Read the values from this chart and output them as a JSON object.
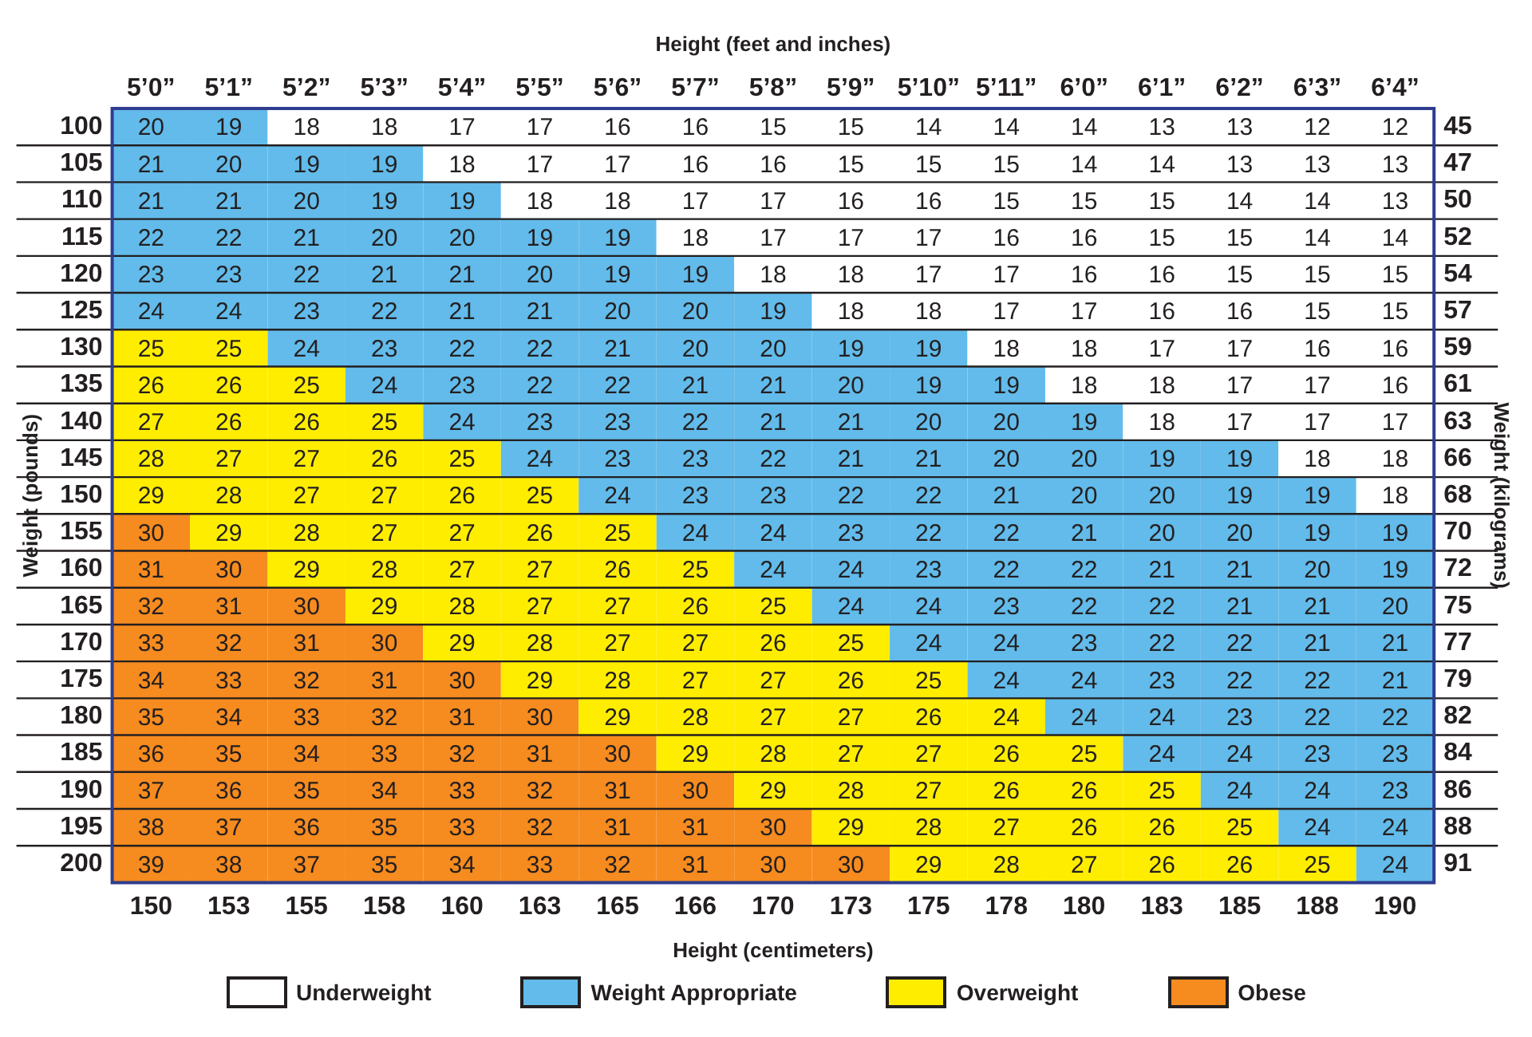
{
  "chart_data": {
    "type": "heatmap",
    "xlabel": "Height (centimeters)",
    "x2label": "Height (feet and inches)",
    "ylabel": "Weight (pounds)",
    "y2label": "Weight (kilograms)",
    "categories": [
      "150",
      "153",
      "155",
      "158",
      "160",
      "163",
      "165",
      "166",
      "170",
      "173",
      "175",
      "178",
      "180",
      "183",
      "185",
      "188",
      "190"
    ],
    "annotations": [
      "5’0”",
      "5’1”",
      "5’2”",
      "5’3”",
      "5’4”",
      "5’5”",
      "5’6”",
      "5’7”",
      "5’8”",
      "5’9”",
      "5’10”",
      "5’11”",
      "6’0”",
      "6’1”",
      "6’2”",
      "6’3”",
      "6’4”"
    ],
    "y_categories": [
      "100",
      "105",
      "110",
      "115",
      "120",
      "125",
      "130",
      "135",
      "140",
      "145",
      "150",
      "155",
      "160",
      "165",
      "170",
      "175",
      "180",
      "185",
      "190",
      "195",
      "200"
    ],
    "y2_categories": [
      "45",
      "47",
      "50",
      "52",
      "54",
      "57",
      "59",
      "61",
      "63",
      "66",
      "68",
      "70",
      "72",
      "75",
      "77",
      "79",
      "82",
      "84",
      "86",
      "88",
      "91"
    ],
    "cells": [
      [
        20,
        19,
        18,
        18,
        17,
        17,
        16,
        16,
        15,
        15,
        14,
        14,
        14,
        13,
        13,
        12,
        12
      ],
      [
        21,
        20,
        19,
        19,
        18,
        17,
        17,
        16,
        16,
        15,
        15,
        15,
        14,
        14,
        13,
        13,
        13
      ],
      [
        21,
        21,
        20,
        19,
        19,
        18,
        18,
        17,
        17,
        16,
        16,
        15,
        15,
        15,
        14,
        14,
        13
      ],
      [
        22,
        22,
        21,
        20,
        20,
        19,
        19,
        18,
        17,
        17,
        17,
        16,
        16,
        15,
        15,
        14,
        14
      ],
      [
        23,
        23,
        22,
        21,
        21,
        20,
        19,
        19,
        18,
        18,
        17,
        17,
        16,
        16,
        15,
        15,
        15
      ],
      [
        24,
        24,
        23,
        22,
        21,
        21,
        20,
        20,
        19,
        18,
        18,
        17,
        17,
        16,
        16,
        15,
        15
      ],
      [
        25,
        25,
        24,
        23,
        22,
        22,
        21,
        20,
        20,
        19,
        19,
        18,
        18,
        17,
        17,
        16,
        16
      ],
      [
        26,
        26,
        25,
        24,
        23,
        22,
        22,
        21,
        21,
        20,
        19,
        19,
        18,
        18,
        17,
        17,
        16
      ],
      [
        27,
        26,
        26,
        25,
        24,
        23,
        23,
        22,
        21,
        21,
        20,
        20,
        19,
        18,
        17,
        17,
        17
      ],
      [
        28,
        27,
        27,
        26,
        25,
        24,
        23,
        23,
        22,
        21,
        21,
        20,
        20,
        19,
        19,
        18,
        18
      ],
      [
        29,
        28,
        27,
        27,
        26,
        25,
        24,
        23,
        23,
        22,
        22,
        21,
        20,
        20,
        19,
        19,
        18
      ],
      [
        30,
        29,
        28,
        27,
        27,
        26,
        25,
        24,
        24,
        23,
        22,
        22,
        21,
        20,
        20,
        19,
        19
      ],
      [
        31,
        30,
        29,
        28,
        27,
        27,
        26,
        25,
        24,
        24,
        23,
        22,
        22,
        21,
        21,
        20,
        19
      ],
      [
        32,
        31,
        30,
        29,
        28,
        27,
        27,
        26,
        25,
        24,
        24,
        23,
        22,
        22,
        21,
        21,
        20
      ],
      [
        33,
        32,
        31,
        30,
        29,
        28,
        27,
        27,
        26,
        25,
        24,
        24,
        23,
        22,
        22,
        21,
        21
      ],
      [
        34,
        33,
        32,
        31,
        30,
        29,
        28,
        27,
        27,
        26,
        25,
        24,
        24,
        23,
        22,
        22,
        21
      ],
      [
        35,
        34,
        33,
        32,
        31,
        30,
        29,
        28,
        27,
        27,
        26,
        24,
        24,
        24,
        23,
        22,
        22
      ],
      [
        36,
        35,
        34,
        33,
        32,
        31,
        30,
        29,
        28,
        27,
        27,
        26,
        25,
        24,
        24,
        23,
        23
      ],
      [
        37,
        36,
        35,
        34,
        33,
        32,
        31,
        30,
        29,
        28,
        27,
        26,
        26,
        25,
        24,
        24,
        23
      ],
      [
        38,
        37,
        36,
        35,
        33,
        32,
        31,
        31,
        30,
        29,
        28,
        27,
        26,
        26,
        25,
        24,
        24
      ],
      [
        39,
        38,
        37,
        35,
        34,
        33,
        32,
        31,
        30,
        30,
        29,
        28,
        27,
        26,
        26,
        25,
        24
      ]
    ],
    "colors": [
      [
        "#62bbea",
        "#62bbea",
        "#ffffff",
        "#ffffff",
        "#ffffff",
        "#ffffff",
        "#ffffff",
        "#ffffff",
        "#ffffff",
        "#ffffff",
        "#ffffff",
        "#ffffff",
        "#ffffff",
        "#ffffff",
        "#ffffff",
        "#ffffff",
        "#ffffff"
      ],
      [
        "#62bbea",
        "#62bbea",
        "#62bbea",
        "#62bbea",
        "#ffffff",
        "#ffffff",
        "#ffffff",
        "#ffffff",
        "#ffffff",
        "#ffffff",
        "#ffffff",
        "#ffffff",
        "#ffffff",
        "#ffffff",
        "#ffffff",
        "#ffffff",
        "#ffffff"
      ],
      [
        "#62bbea",
        "#62bbea",
        "#62bbea",
        "#62bbea",
        "#62bbea",
        "#ffffff",
        "#ffffff",
        "#ffffff",
        "#ffffff",
        "#ffffff",
        "#ffffff",
        "#ffffff",
        "#ffffff",
        "#ffffff",
        "#ffffff",
        "#ffffff",
        "#ffffff"
      ],
      [
        "#62bbea",
        "#62bbea",
        "#62bbea",
        "#62bbea",
        "#62bbea",
        "#62bbea",
        "#62bbea",
        "#ffffff",
        "#ffffff",
        "#ffffff",
        "#ffffff",
        "#ffffff",
        "#ffffff",
        "#ffffff",
        "#ffffff",
        "#ffffff",
        "#ffffff"
      ],
      [
        "#62bbea",
        "#62bbea",
        "#62bbea",
        "#62bbea",
        "#62bbea",
        "#62bbea",
        "#62bbea",
        "#62bbea",
        "#ffffff",
        "#ffffff",
        "#ffffff",
        "#ffffff",
        "#ffffff",
        "#ffffff",
        "#ffffff",
        "#ffffff",
        "#ffffff"
      ],
      [
        "#62bbea",
        "#62bbea",
        "#62bbea",
        "#62bbea",
        "#62bbea",
        "#62bbea",
        "#62bbea",
        "#62bbea",
        "#62bbea",
        "#ffffff",
        "#ffffff",
        "#ffffff",
        "#ffffff",
        "#ffffff",
        "#ffffff",
        "#ffffff",
        "#ffffff"
      ],
      [
        "#ffed00",
        "#ffed00",
        "#62bbea",
        "#62bbea",
        "#62bbea",
        "#62bbea",
        "#62bbea",
        "#62bbea",
        "#62bbea",
        "#62bbea",
        "#62bbea",
        "#ffffff",
        "#ffffff",
        "#ffffff",
        "#ffffff",
        "#ffffff",
        "#ffffff"
      ],
      [
        "#ffed00",
        "#ffed00",
        "#ffed00",
        "#62bbea",
        "#62bbea",
        "#62bbea",
        "#62bbea",
        "#62bbea",
        "#62bbea",
        "#62bbea",
        "#62bbea",
        "#62bbea",
        "#ffffff",
        "#ffffff",
        "#ffffff",
        "#ffffff",
        "#ffffff"
      ],
      [
        "#ffed00",
        "#ffed00",
        "#ffed00",
        "#ffed00",
        "#62bbea",
        "#62bbea",
        "#62bbea",
        "#62bbea",
        "#62bbea",
        "#62bbea",
        "#62bbea",
        "#62bbea",
        "#62bbea",
        "#ffffff",
        "#ffffff",
        "#ffffff",
        "#ffffff"
      ],
      [
        "#ffed00",
        "#ffed00",
        "#ffed00",
        "#ffed00",
        "#ffed00",
        "#62bbea",
        "#62bbea",
        "#62bbea",
        "#62bbea",
        "#62bbea",
        "#62bbea",
        "#62bbea",
        "#62bbea",
        "#62bbea",
        "#62bbea",
        "#ffffff",
        "#ffffff"
      ],
      [
        "#ffed00",
        "#ffed00",
        "#ffed00",
        "#ffed00",
        "#ffed00",
        "#ffed00",
        "#62bbea",
        "#62bbea",
        "#62bbea",
        "#62bbea",
        "#62bbea",
        "#62bbea",
        "#62bbea",
        "#62bbea",
        "#62bbea",
        "#62bbea",
        "#ffffff"
      ],
      [
        "#f68b1f",
        "#ffed00",
        "#ffed00",
        "#ffed00",
        "#ffed00",
        "#ffed00",
        "#ffed00",
        "#62bbea",
        "#62bbea",
        "#62bbea",
        "#62bbea",
        "#62bbea",
        "#62bbea",
        "#62bbea",
        "#62bbea",
        "#62bbea",
        "#62bbea"
      ],
      [
        "#f68b1f",
        "#f68b1f",
        "#ffed00",
        "#ffed00",
        "#ffed00",
        "#ffed00",
        "#ffed00",
        "#ffed00",
        "#62bbea",
        "#62bbea",
        "#62bbea",
        "#62bbea",
        "#62bbea",
        "#62bbea",
        "#62bbea",
        "#62bbea",
        "#62bbea"
      ],
      [
        "#f68b1f",
        "#f68b1f",
        "#f68b1f",
        "#ffed00",
        "#ffed00",
        "#ffed00",
        "#ffed00",
        "#ffed00",
        "#ffed00",
        "#62bbea",
        "#62bbea",
        "#62bbea",
        "#62bbea",
        "#62bbea",
        "#62bbea",
        "#62bbea",
        "#62bbea"
      ],
      [
        "#f68b1f",
        "#f68b1f",
        "#f68b1f",
        "#f68b1f",
        "#ffed00",
        "#ffed00",
        "#ffed00",
        "#ffed00",
        "#ffed00",
        "#ffed00",
        "#62bbea",
        "#62bbea",
        "#62bbea",
        "#62bbea",
        "#62bbea",
        "#62bbea",
        "#62bbea"
      ],
      [
        "#f68b1f",
        "#f68b1f",
        "#f68b1f",
        "#f68b1f",
        "#f68b1f",
        "#ffed00",
        "#ffed00",
        "#ffed00",
        "#ffed00",
        "#ffed00",
        "#ffed00",
        "#62bbea",
        "#62bbea",
        "#62bbea",
        "#62bbea",
        "#62bbea",
        "#62bbea"
      ],
      [
        "#f68b1f",
        "#f68b1f",
        "#f68b1f",
        "#f68b1f",
        "#f68b1f",
        "#f68b1f",
        "#ffed00",
        "#ffed00",
        "#ffed00",
        "#ffed00",
        "#ffed00",
        "#ffed00",
        "#62bbea",
        "#62bbea",
        "#62bbea",
        "#62bbea",
        "#62bbea"
      ],
      [
        "#f68b1f",
        "#f68b1f",
        "#f68b1f",
        "#f68b1f",
        "#f68b1f",
        "#f68b1f",
        "#f68b1f",
        "#ffed00",
        "#ffed00",
        "#ffed00",
        "#ffed00",
        "#ffed00",
        "#ffed00",
        "#62bbea",
        "#62bbea",
        "#62bbea",
        "#62bbea"
      ],
      [
        "#f68b1f",
        "#f68b1f",
        "#f68b1f",
        "#f68b1f",
        "#f68b1f",
        "#f68b1f",
        "#f68b1f",
        "#f68b1f",
        "#ffed00",
        "#ffed00",
        "#ffed00",
        "#ffed00",
        "#ffed00",
        "#ffed00",
        "#62bbea",
        "#62bbea",
        "#62bbea"
      ],
      [
        "#f68b1f",
        "#f68b1f",
        "#f68b1f",
        "#f68b1f",
        "#f68b1f",
        "#f68b1f",
        "#f68b1f",
        "#f68b1f",
        "#f68b1f",
        "#ffed00",
        "#ffed00",
        "#ffed00",
        "#ffed00",
        "#ffed00",
        "#ffed00",
        "#62bbea",
        "#62bbea"
      ],
      [
        "#f68b1f",
        "#f68b1f",
        "#f68b1f",
        "#f68b1f",
        "#f68b1f",
        "#f68b1f",
        "#f68b1f",
        "#f68b1f",
        "#f68b1f",
        "#f68b1f",
        "#ffed00",
        "#ffed00",
        "#ffed00",
        "#ffed00",
        "#ffed00",
        "#ffed00",
        "#62bbea"
      ]
    ],
    "series": [
      {
        "name": "Underweight",
        "color": "#ffffff",
        "values": [
          null,
          null,
          null,
          null,
          null,
          null,
          null,
          null,
          null,
          null,
          null,
          null,
          null,
          null,
          null,
          null,
          null
        ]
      },
      {
        "name": "Weight Appropriate",
        "color": "#62bbea",
        "values": [
          null,
          null,
          null,
          null,
          null,
          null,
          null,
          null,
          null,
          null,
          null,
          null,
          null,
          null,
          null,
          null,
          null
        ]
      },
      {
        "name": "Overweight",
        "color": "#ffed00",
        "values": [
          null,
          null,
          null,
          null,
          null,
          null,
          null,
          null,
          null,
          null,
          null,
          null,
          null,
          null,
          null,
          null,
          null
        ]
      },
      {
        "name": "Obese",
        "color": "#f68b1f",
        "values": [
          null,
          null,
          null,
          null,
          null,
          null,
          null,
          null,
          null,
          null,
          null,
          null,
          null,
          null,
          null,
          null,
          null
        ]
      }
    ],
    "legend": "bottom",
    "grid": true,
    "data_labels": true
  }
}
